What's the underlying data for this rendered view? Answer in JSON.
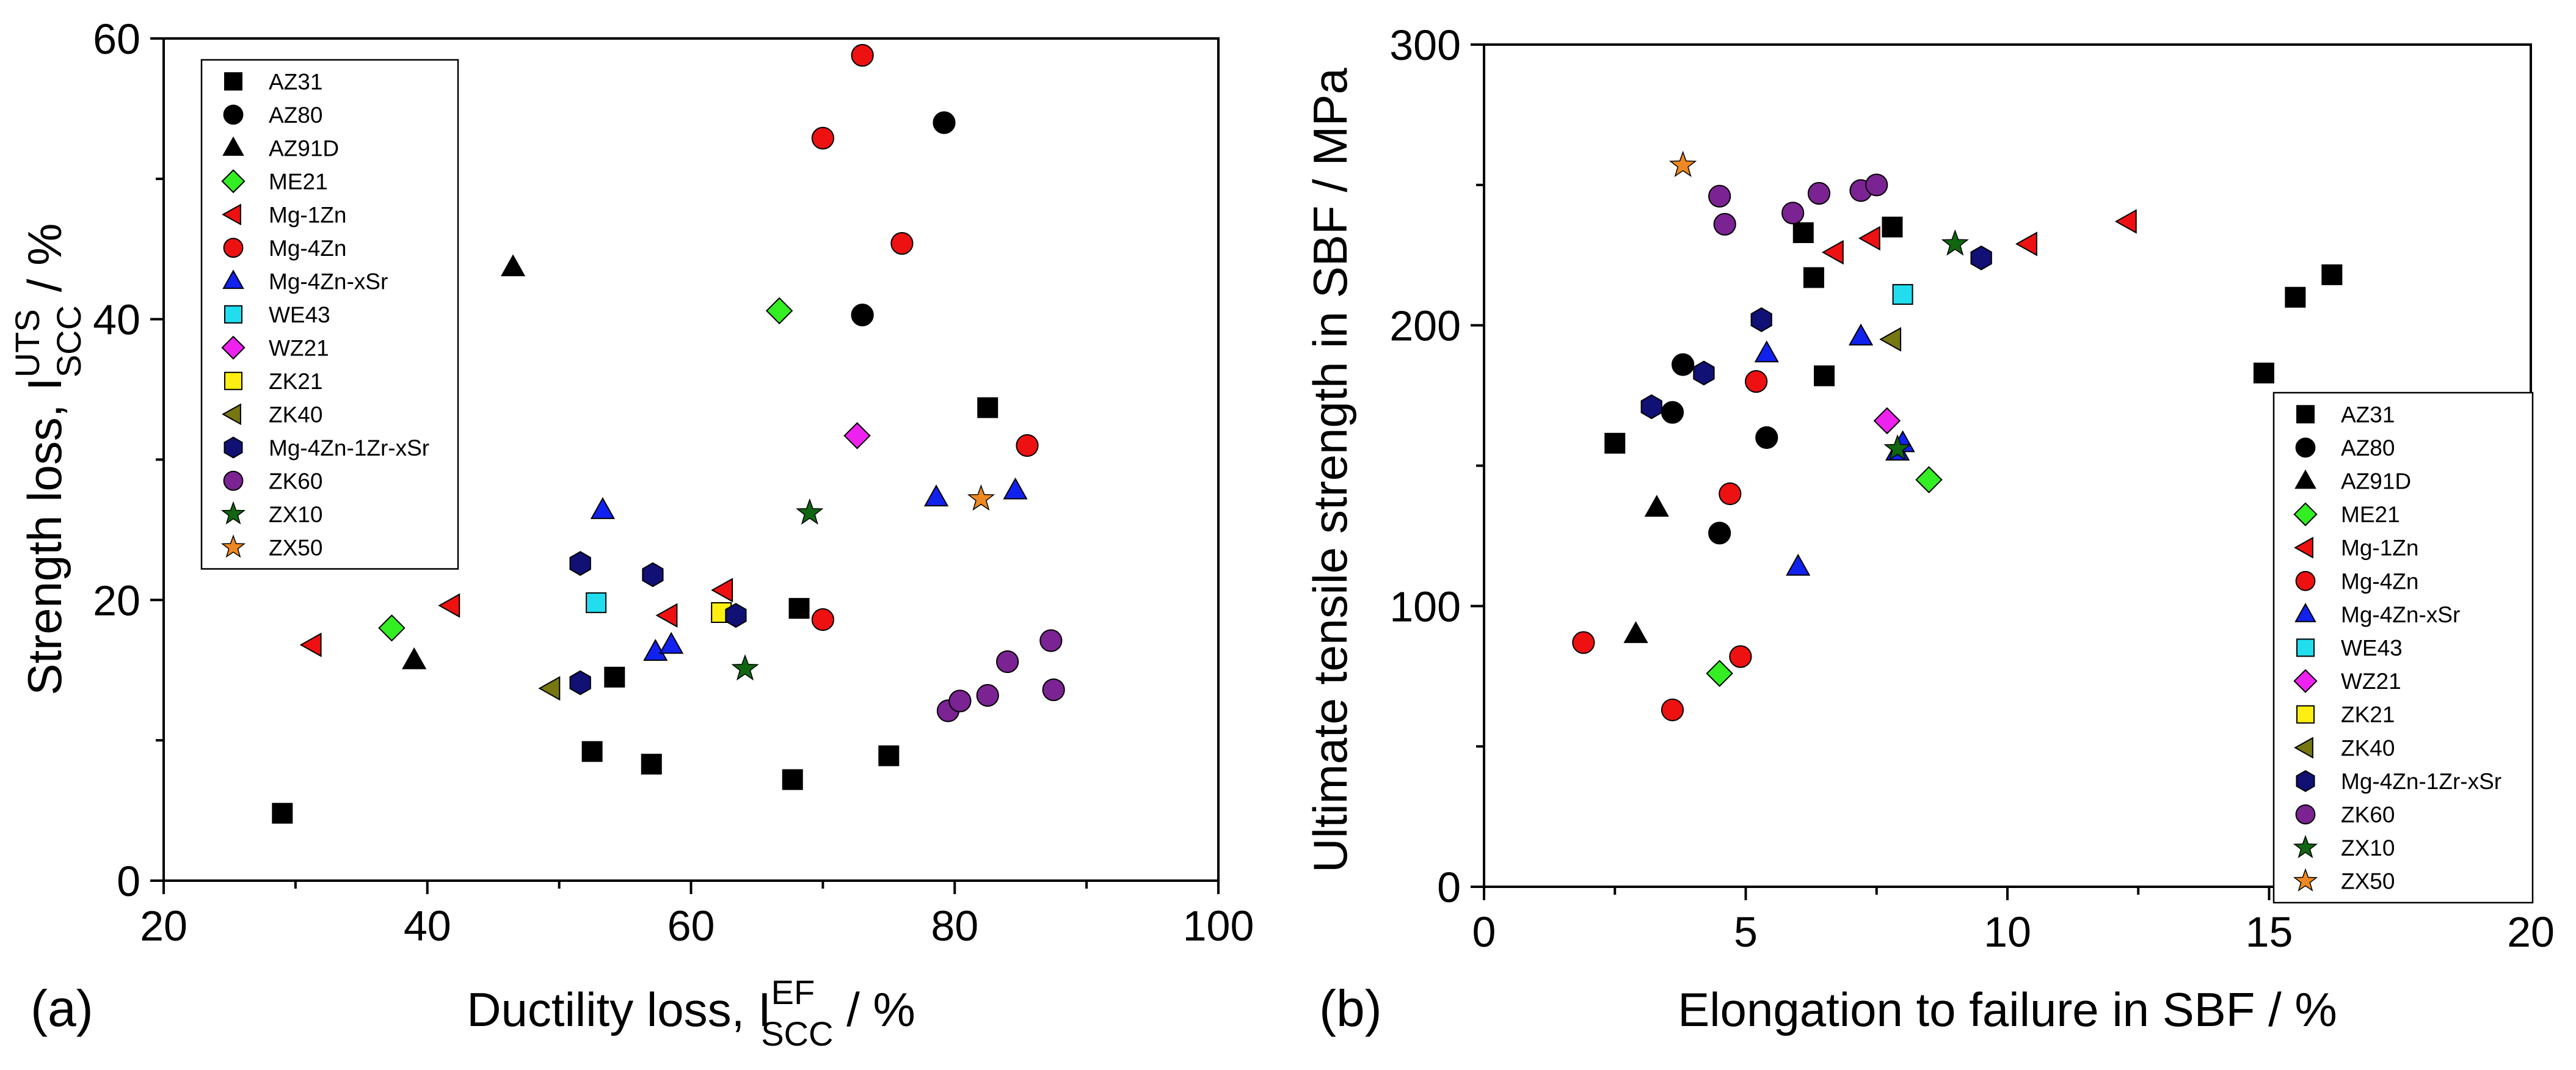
{
  "chart_data": [
    {
      "type": "scatter",
      "panel_label": "(a)",
      "xlabel_main": "Ductility loss, I",
      "xlabel_sup": "EF",
      "xlabel_sub": "SCC",
      "xlabel_unit": " / %",
      "ylabel_main": "Strength loss, I",
      "ylabel_sup": "UTS",
      "ylabel_sub": "SCC",
      "ylabel_unit": " / %",
      "xlim": [
        20,
        100
      ],
      "ylim": [
        0,
        60
      ],
      "xticks": [
        "20",
        "40",
        "60",
        "80",
        "100"
      ],
      "yticks": [
        "0",
        "20",
        "40",
        "60"
      ],
      "legend_position": "top-left",
      "series": [
        {
          "name": "AZ31",
          "marker": "square",
          "color": "#000000",
          "points": [
            [
              29,
              4.8
            ],
            [
              52.5,
              9.2
            ],
            [
              54.2,
              14.5
            ],
            [
              57,
              8.3
            ],
            [
              67.7,
              7.2
            ],
            [
              68.2,
              19.4
            ],
            [
              75,
              8.9
            ],
            [
              82.5,
              33.7
            ]
          ]
        },
        {
          "name": "AZ80",
          "marker": "circle",
          "color": "#000000",
          "points": [
            [
              73,
              40.3
            ],
            [
              79.2,
              54
            ]
          ]
        },
        {
          "name": "AZ91D",
          "marker": "triangle-up",
          "color": "#000000",
          "points": [
            [
              39,
              15.7
            ],
            [
              46.5,
              43.7
            ]
          ]
        },
        {
          "name": "ME21",
          "marker": "diamond",
          "color": "#33ee22",
          "points": [
            [
              37.3,
              18
            ],
            [
              66.7,
              40.6
            ]
          ]
        },
        {
          "name": "Mg-1Zn",
          "marker": "triangle-left",
          "color": "#ee1111",
          "points": [
            [
              31.3,
              16.8
            ],
            [
              41.8,
              19.6
            ],
            [
              58.3,
              18.9
            ],
            [
              62.5,
              20.7
            ]
          ]
        },
        {
          "name": "Mg-4Zn",
          "marker": "circle",
          "color": "#ee1111",
          "points": [
            [
              70,
              52.9
            ],
            [
              70,
              18.6
            ],
            [
              73,
              58.8
            ],
            [
              76,
              45.4
            ],
            [
              85.5,
              31
            ]
          ]
        },
        {
          "name": "Mg-4Zn-xSr",
          "marker": "triangle-up",
          "color": "#1122ee",
          "points": [
            [
              53.3,
              26.4
            ],
            [
              57.3,
              16.3
            ],
            [
              58.5,
              16.8
            ],
            [
              78.6,
              27.3
            ],
            [
              84.6,
              27.8
            ]
          ]
        },
        {
          "name": "WE43",
          "marker": "square",
          "color": "#22ddee",
          "points": [
            [
              52.8,
              19.8
            ]
          ]
        },
        {
          "name": "WZ21",
          "marker": "diamond",
          "color": "#ee22ee",
          "points": [
            [
              72.6,
              31.7
            ]
          ]
        },
        {
          "name": "ZK21",
          "marker": "square",
          "color": "#ffee11",
          "points": [
            [
              62.3,
              19.1
            ]
          ]
        },
        {
          "name": "ZK40",
          "marker": "triangle-left",
          "color": "#777711",
          "points": [
            [
              49.4,
              13.7
            ]
          ]
        },
        {
          "name": "Mg-4Zn-1Zr-xSr",
          "marker": "hexagon",
          "color": "#101075",
          "points": [
            [
              51.6,
              14.1
            ],
            [
              51.6,
              22.6
            ],
            [
              57.1,
              21.8
            ],
            [
              63.4,
              18.9
            ]
          ]
        },
        {
          "name": "ZK60",
          "marker": "circle",
          "color": "#7b2392",
          "points": [
            [
              79.5,
              12.1
            ],
            [
              80.4,
              12.8
            ],
            [
              82.5,
              13.2
            ],
            [
              84,
              15.6
            ],
            [
              87.3,
              17.1
            ],
            [
              87.5,
              13.6
            ]
          ]
        },
        {
          "name": "ZX10",
          "marker": "star",
          "color": "#116611",
          "points": [
            [
              64.1,
              15.1
            ],
            [
              69,
              26.2
            ]
          ]
        },
        {
          "name": "ZX50",
          "marker": "star",
          "color": "#ee8822",
          "points": [
            [
              82,
              27.2
            ]
          ]
        }
      ]
    },
    {
      "type": "scatter",
      "panel_label": "(b)",
      "xlabel": "Elongation to failure in SBF / %",
      "ylabel": "Ultimate tensile strength in SBF / MPa",
      "xlim": [
        0,
        20
      ],
      "ylim": [
        0,
        300
      ],
      "xticks": [
        "0",
        "5",
        "10",
        "15",
        "20"
      ],
      "yticks": [
        "0",
        "100",
        "200",
        "300"
      ],
      "legend_position": "bottom-right",
      "series": [
        {
          "name": "AZ31",
          "marker": "square",
          "color": "#000000",
          "points": [
            [
              2.5,
              158
            ],
            [
              6.1,
              233
            ],
            [
              6.3,
              217
            ],
            [
              6.5,
              182
            ],
            [
              7.8,
              235
            ],
            [
              14.9,
              183
            ],
            [
              15.5,
              210
            ],
            [
              16.2,
              218
            ]
          ]
        },
        {
          "name": "AZ80",
          "marker": "circle",
          "color": "#000000",
          "points": [
            [
              3.6,
              169
            ],
            [
              3.8,
              186
            ],
            [
              4.5,
              126
            ],
            [
              5.4,
              160
            ]
          ]
        },
        {
          "name": "AZ91D",
          "marker": "triangle-up",
          "color": "#000000",
          "points": [
            [
              2.9,
              90
            ],
            [
              3.3,
              135
            ]
          ]
        },
        {
          "name": "ME21",
          "marker": "diamond",
          "color": "#33ee22",
          "points": [
            [
              4.5,
              76
            ],
            [
              8.5,
              145
            ]
          ]
        },
        {
          "name": "Mg-1Zn",
          "marker": "triangle-left",
          "color": "#ee1111",
          "points": [
            [
              6.7,
              226
            ],
            [
              7.4,
              231
            ],
            [
              10.4,
              229
            ],
            [
              12.3,
              237
            ]
          ]
        },
        {
          "name": "Mg-4Zn",
          "marker": "circle",
          "color": "#ee1111",
          "points": [
            [
              1.9,
              87
            ],
            [
              3.6,
              63
            ],
            [
              4.7,
              140
            ],
            [
              4.9,
              82
            ],
            [
              5.2,
              180
            ]
          ]
        },
        {
          "name": "Mg-4Zn-xSr",
          "marker": "triangle-up",
          "color": "#1122ee",
          "points": [
            [
              5.4,
              190
            ],
            [
              6,
              114
            ],
            [
              7.2,
              196
            ],
            [
              7.9,
              155
            ],
            [
              8,
              158
            ]
          ]
        },
        {
          "name": "WE43",
          "marker": "square",
          "color": "#22ddee",
          "points": [
            [
              8,
              211
            ]
          ]
        },
        {
          "name": "WZ21",
          "marker": "diamond",
          "color": "#ee22ee",
          "points": [
            [
              7.7,
              166
            ]
          ]
        },
        {
          "name": "ZK21",
          "marker": "square",
          "color": "#ffee11",
          "points": []
        },
        {
          "name": "ZK40",
          "marker": "triangle-left",
          "color": "#777711",
          "points": [
            [
              7.8,
              195
            ]
          ]
        },
        {
          "name": "Mg-4Zn-1Zr-xSr",
          "marker": "hexagon",
          "color": "#101075",
          "points": [
            [
              3.2,
              171
            ],
            [
              4.2,
              183
            ],
            [
              5.3,
              202
            ],
            [
              9.5,
              224
            ]
          ]
        },
        {
          "name": "ZK60",
          "marker": "circle",
          "color": "#7b2392",
          "points": [
            [
              4.5,
              246
            ],
            [
              4.6,
              236
            ],
            [
              5.9,
              240
            ],
            [
              6.4,
              247
            ],
            [
              7.2,
              248
            ],
            [
              7.5,
              250
            ]
          ]
        },
        {
          "name": "ZX10",
          "marker": "star",
          "color": "#116611",
          "points": [
            [
              7.9,
              156
            ],
            [
              9,
              229
            ]
          ]
        },
        {
          "name": "ZX50",
          "marker": "star",
          "color": "#ee8822",
          "points": [
            [
              3.8,
              257
            ]
          ]
        }
      ]
    }
  ]
}
